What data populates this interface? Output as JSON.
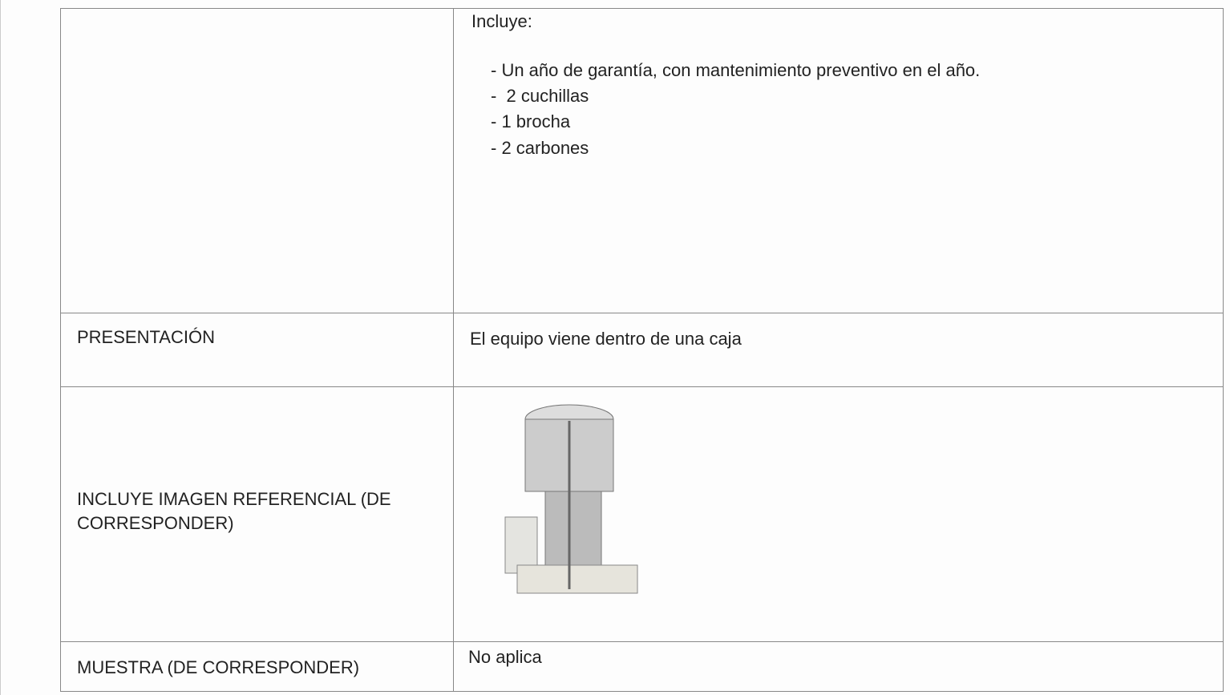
{
  "table": {
    "rows": [
      {
        "value": {
          "heading": "Incluye:",
          "items": [
            "- Un año de garantía, con mantenimiento preventivo en el año.",
            "-  2 cuchillas",
            "- 1 brocha",
            "- 2 carbones"
          ]
        }
      },
      {
        "label": "PRESENTACIÓN",
        "value": "El equipo viene dentro de una caja"
      },
      {
        "label": "INCLUYE IMAGEN REFERENCIAL (DE CORRESPONDER)"
      },
      {
        "label": "MUESTRA (DE CORRESPONDER)",
        "value": "No aplica"
      }
    ]
  }
}
